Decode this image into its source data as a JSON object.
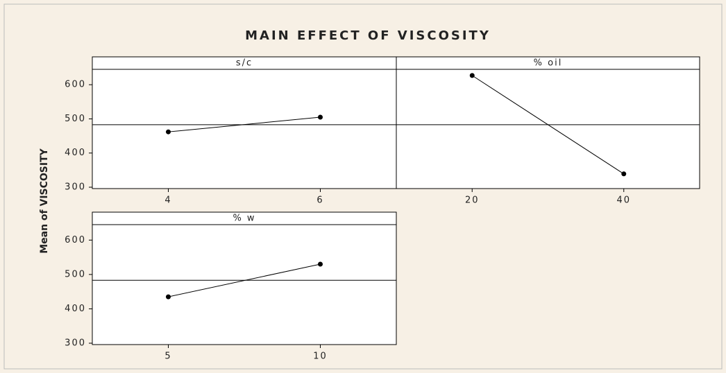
{
  "title": "MAIN EFFECT OF VISCOSITY",
  "ylabel": "Mean of VISCOSITY",
  "chart_data": [
    {
      "type": "line",
      "title": "s/c",
      "categories": [
        "4",
        "6"
      ],
      "values": [
        462,
        505
      ],
      "reference_line": 483,
      "color": "#000000",
      "ylim": [
        296,
        645
      ],
      "yticks": [
        300,
        400,
        500,
        600
      ]
    },
    {
      "type": "line",
      "title": "% oil",
      "categories": [
        "20",
        "40"
      ],
      "values": [
        627,
        339
      ],
      "reference_line": 483,
      "color": "#000000",
      "ylim": [
        296,
        645
      ],
      "yticks": [
        300,
        400,
        500,
        600
      ]
    },
    {
      "type": "line",
      "title": "% w",
      "categories": [
        "5",
        "10"
      ],
      "values": [
        435,
        530
      ],
      "reference_line": 483,
      "color": "#000000",
      "ylim": [
        296,
        645
      ],
      "yticks": [
        300,
        400,
        500,
        600
      ]
    }
  ]
}
